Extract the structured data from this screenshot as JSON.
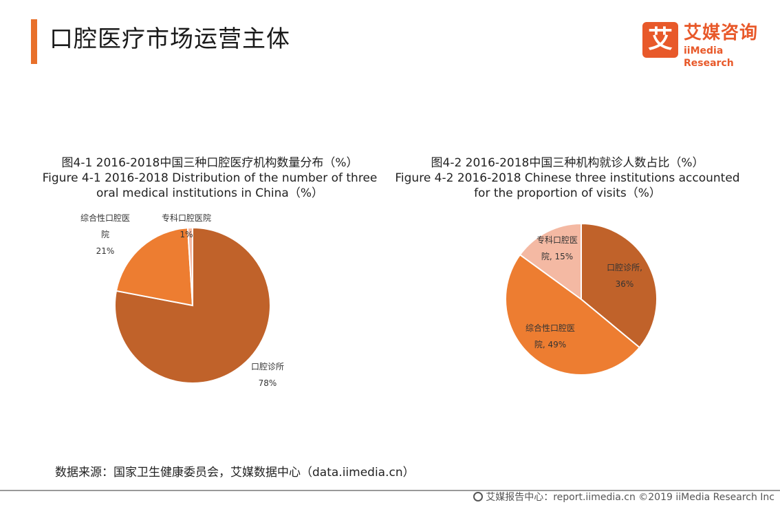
{
  "header": {
    "title": "口腔医疗市场运营主体",
    "logo_badge": "艾",
    "logo_cn": "艾媒咨询",
    "logo_en": "iiMedia Research",
    "accent": "#e8702a"
  },
  "chart_data": [
    {
      "type": "pie",
      "title_lines": [
        "图4-1  2016-2018中国三种口腔医疗机构数量分布（%）",
        "Figure 4-1 2016-2018 Distribution of the number of three",
        "oral medical institutions in China（%）"
      ],
      "slices": [
        {
          "label": "口腔诊所",
          "value": 78,
          "color": "#c0622a"
        },
        {
          "label": "综合性口腔医院",
          "value": 21,
          "color": "#ed7d31"
        },
        {
          "label": "专科口腔医院",
          "value": 1,
          "color": "#f4b9a3"
        }
      ],
      "labels": [
        {
          "lines": [
            "口腔诊所",
            "78%"
          ]
        },
        {
          "lines": [
            "综合性口腔医",
            "院",
            "21%"
          ]
        },
        {
          "lines": [
            "专科口腔医院",
            "1%"
          ]
        }
      ]
    },
    {
      "type": "pie",
      "title_lines": [
        "图4-2 2016-2018中国三种机构就诊人数占比（%）",
        "Figure 4-2 2016-2018 Chinese three institutions accounted",
        "for the proportion of visits（%）"
      ],
      "slices": [
        {
          "label": "口腔诊所",
          "value": 36,
          "color": "#c0622a"
        },
        {
          "label": "综合性口腔医院",
          "value": 49,
          "color": "#ed7d31"
        },
        {
          "label": "专科口腔医院",
          "value": 15,
          "color": "#f4b9a3"
        }
      ],
      "labels": [
        {
          "lines": [
            "口腔诊所,",
            "36%"
          ]
        },
        {
          "lines": [
            "综合性口腔医",
            "院, 49%"
          ]
        },
        {
          "lines": [
            "专科口腔医",
            "院, 15%"
          ]
        }
      ]
    }
  ],
  "source": "数据来源：国家卫生健康委员会，艾媒数据中心（data.iimedia.cn）",
  "footer": "艾媒报告中心：report.iimedia.cn  ©2019  iiMedia Research  Inc"
}
